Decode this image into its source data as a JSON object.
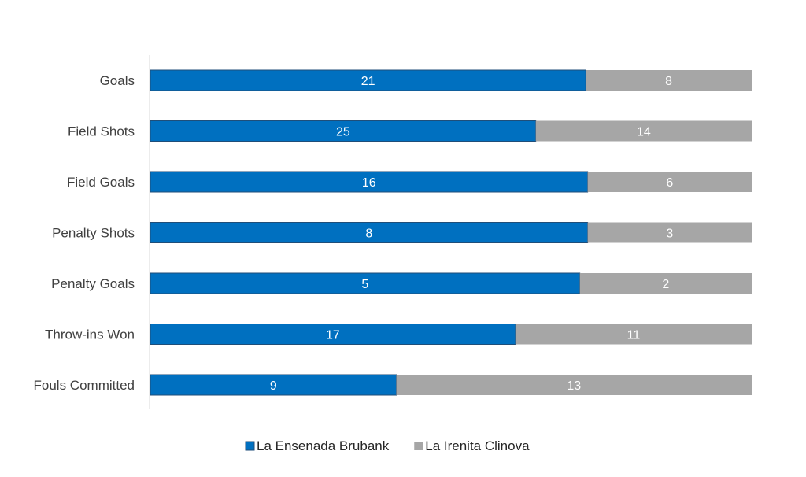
{
  "chart_data": {
    "type": "bar",
    "orientation": "horizontal",
    "stacked": "percent",
    "categories": [
      "Goals",
      "Field Shots",
      "Field Goals",
      "Penalty Shots",
      "Penalty Goals",
      "Throw-ins Won",
      "Fouls Committed"
    ],
    "series": [
      {
        "name": "La Ensenada Brubank",
        "color": "#0070C0",
        "values": [
          21,
          25,
          16,
          8,
          5,
          17,
          9
        ]
      },
      {
        "name": "La Irenita Clinova",
        "color": "#A6A6A6",
        "values": [
          8,
          14,
          6,
          3,
          2,
          11,
          13
        ]
      }
    ],
    "title": "",
    "xlabel": "",
    "ylabel": "",
    "grid": false,
    "legend_position": "bottom"
  }
}
